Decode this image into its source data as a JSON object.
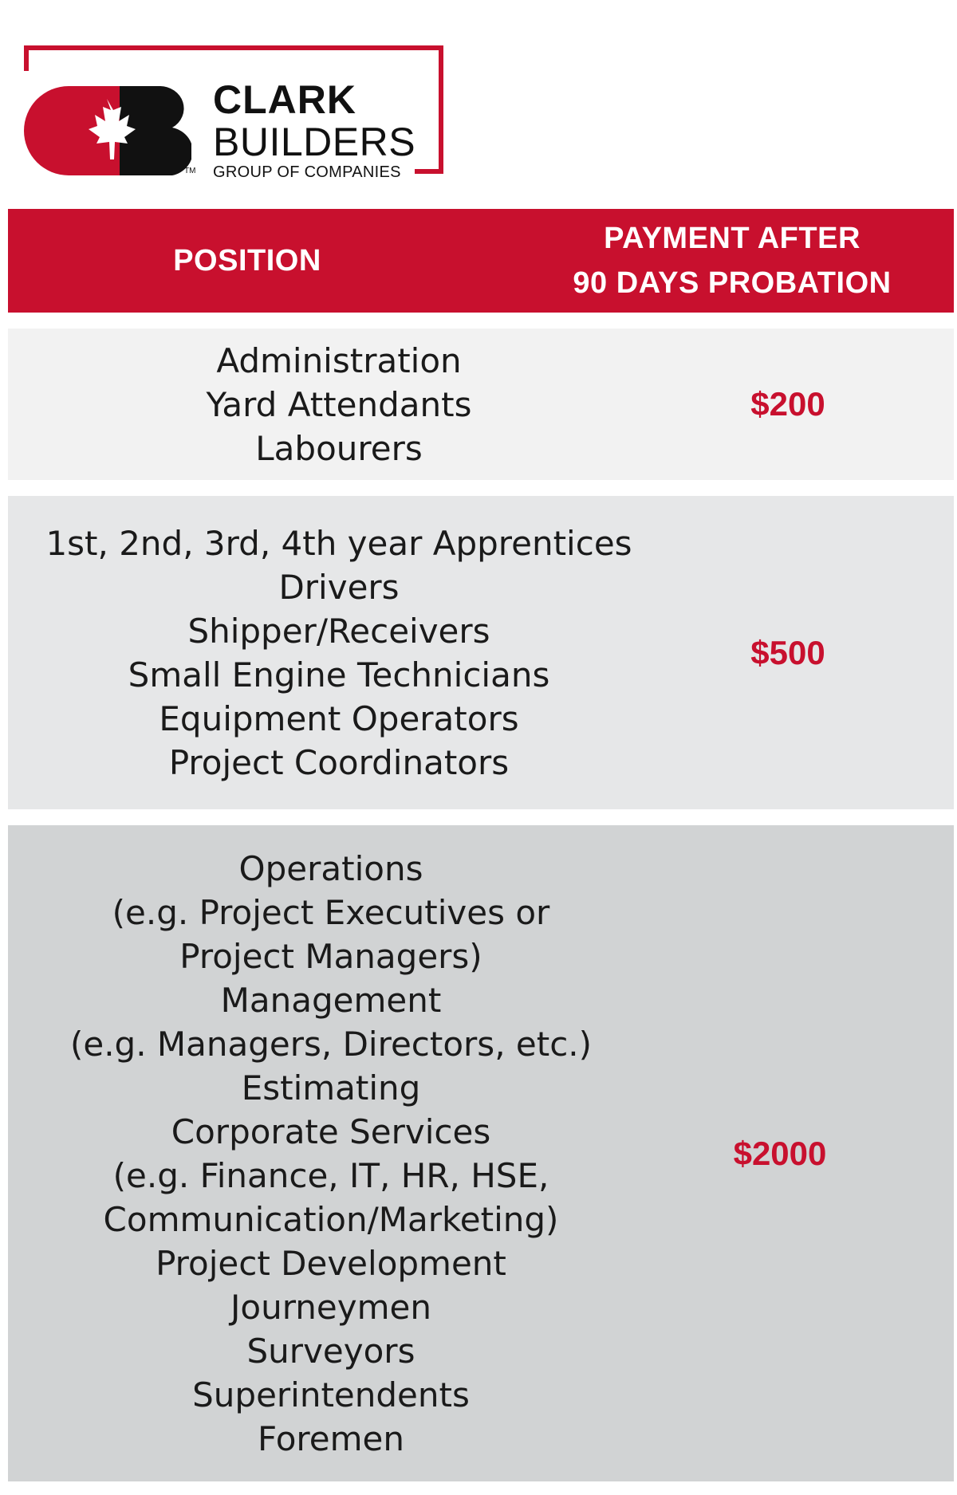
{
  "logo": {
    "line1": "CLARK",
    "line2": "BUILDERS",
    "line3": "GROUP OF COMPANIES",
    "tm": "TM",
    "brand_color": "#c8102e"
  },
  "table": {
    "header": {
      "position": "POSITION",
      "payment_line1": "PAYMENT AFTER",
      "payment_line2": "90 DAYS PROBATION"
    },
    "rows": [
      {
        "positions": [
          "Administration",
          "Yard Attendants",
          "Labourers"
        ],
        "payment": "$200"
      },
      {
        "positions": [
          "1st, 2nd, 3rd, 4th year Apprentices",
          "Drivers",
          "Shipper/Receivers",
          "Small Engine Technicians",
          "Equipment Operators",
          "Project Coordinators"
        ],
        "payment": "$500"
      },
      {
        "positions": [
          "Operations",
          "(e.g. Project Executives or",
          "Project Managers)",
          "Management",
          "(e.g. Managers, Directors, etc.)",
          "Estimating",
          "Corporate Services",
          "(e.g. Finance, IT, HR, HSE,",
          "Communication/Marketing)",
          "Project Development",
          "Journeymen",
          "Surveyors",
          "Superintendents",
          "Foremen"
        ],
        "payment": "$2000"
      }
    ]
  }
}
